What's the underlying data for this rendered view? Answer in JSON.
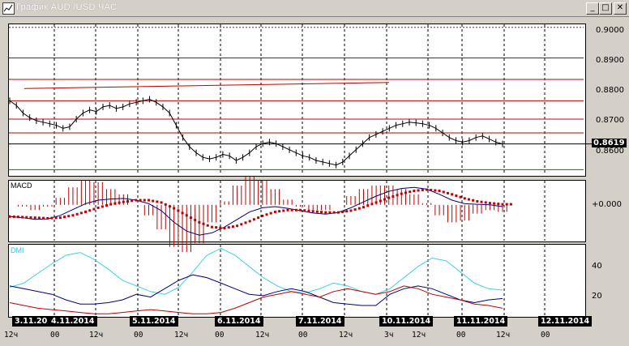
{
  "window": {
    "title": "График AUD /USD  ЧАС",
    "icon": "chart-window-icon",
    "minimize_label": "_",
    "maximize_label": "□",
    "close_label": "✕"
  },
  "price_panel": {
    "scale_labels": [
      "0.9000",
      "0.8900",
      "0.8800",
      "0.8700",
      "0.8600"
    ],
    "current_price": "0.8619",
    "resistance_levels": [
      0.9,
      0.89,
      0.883,
      0.876,
      0.87,
      0.8655
    ],
    "support_level": 0.8535,
    "trendline": [
      0.88,
      0.882
    ],
    "ylim": [
      0.852,
      0.901
    ],
    "series": [
      0.876,
      0.8745,
      0.872,
      0.8705,
      0.8695,
      0.869,
      0.8685,
      0.868,
      0.867,
      0.8675,
      0.87,
      0.872,
      0.873,
      0.8725,
      0.874,
      0.8745,
      0.8735,
      0.874,
      0.875,
      0.8755,
      0.876,
      0.8765,
      0.8755,
      0.874,
      0.872,
      0.868,
      0.864,
      0.861,
      0.859,
      0.8575,
      0.857,
      0.8575,
      0.8585,
      0.858,
      0.8565,
      0.8575,
      0.859,
      0.861,
      0.862,
      0.8625,
      0.862,
      0.861,
      0.86,
      0.859,
      0.858,
      0.8575,
      0.8565,
      0.856,
      0.8555,
      0.855,
      0.856,
      0.858,
      0.86,
      0.862,
      0.864,
      0.865,
      0.866,
      0.867,
      0.868,
      0.8685,
      0.869,
      0.8688,
      0.8685,
      0.868,
      0.867,
      0.8655,
      0.864,
      0.863,
      0.8625,
      0.863,
      0.864,
      0.8645,
      0.8635,
      0.8625,
      0.8619
    ]
  },
  "macd_panel": {
    "label": "MACD",
    "scale_label": "+0.000",
    "ylim": [
      -0.006,
      0.004
    ],
    "macd": [
      -0.002,
      -0.0022,
      -0.0025,
      -0.0024,
      -0.0018,
      -0.0008,
      0.0002,
      0.0008,
      0.001,
      0.0011,
      0.0008,
      0.0002,
      -0.001,
      -0.003,
      -0.0045,
      -0.0052,
      -0.0048,
      -0.0038,
      -0.0025,
      -0.0012,
      -0.0005,
      -0.0003,
      -0.0006,
      -0.001,
      -0.0014,
      -0.0016,
      -0.0013,
      -0.0005,
      0.0005,
      0.0015,
      0.0023,
      0.0028,
      0.003,
      0.0027,
      0.0018,
      0.0008,
      0.0002,
      0.0001,
      0.0,
      -0.0003
    ],
    "signal": [
      -0.002,
      -0.0021,
      -0.0022,
      -0.0023,
      -0.0022,
      -0.0018,
      -0.0012,
      -0.0005,
      0.0001,
      0.0005,
      0.0008,
      0.0008,
      0.0004,
      -0.0006,
      -0.0018,
      -0.003,
      -0.0038,
      -0.004,
      -0.0036,
      -0.0028,
      -0.0019,
      -0.0012,
      -0.0009,
      -0.0009,
      -0.0011,
      -0.0013,
      -0.0013,
      -0.001,
      -0.0004,
      0.0004,
      0.0012,
      0.0019,
      0.0024,
      0.0026,
      0.0024,
      0.0018,
      0.0011,
      0.0006,
      0.0003,
      0.0001
    ]
  },
  "dmi_panel": {
    "label": "DMI",
    "scale_labels": [
      "40",
      "20"
    ],
    "ylim": [
      5,
      55
    ],
    "adx": [
      25,
      28,
      35,
      42,
      48,
      50,
      45,
      38,
      30,
      26,
      22,
      20,
      25,
      36,
      48,
      53,
      48,
      40,
      32,
      26,
      22,
      21,
      24,
      28,
      26,
      22,
      20,
      24,
      32,
      40,
      46,
      44,
      36,
      28,
      24,
      23
    ],
    "plus_di": [
      26,
      24,
      22,
      20,
      16,
      13,
      13,
      14,
      16,
      20,
      18,
      24,
      30,
      34,
      32,
      28,
      24,
      20,
      19,
      22,
      24,
      22,
      18,
      14,
      13,
      12,
      12,
      20,
      24,
      26,
      24,
      20,
      16,
      14,
      16,
      17
    ],
    "minus_di": [
      14,
      12,
      10,
      9,
      8,
      7,
      6,
      6,
      7,
      8,
      9,
      8,
      7,
      6,
      6,
      7,
      10,
      14,
      18,
      20,
      22,
      20,
      18,
      22,
      24,
      22,
      20,
      22,
      26,
      24,
      20,
      18,
      16,
      13,
      12,
      10
    ]
  },
  "time_axis": {
    "date_labels": [
      "3.11.20",
      "4.11.2014",
      "5.11.2014",
      "6.11.2014",
      "7.11.2014",
      "10.11.2014",
      "11.11.2014",
      "12.11.2014"
    ],
    "tick_labels": [
      "12ч",
      "00",
      "12ч",
      "00",
      "12ч",
      "00",
      "12ч",
      "00",
      "12ч",
      "3ч",
      "12ч",
      "00",
      "12ч",
      "00"
    ]
  },
  "colors": {
    "price_line": "#000000",
    "resistance": "#c00000",
    "support": "#008000",
    "macd_line": "#000080",
    "macd_signal": "#c00000",
    "adx": "#40d0e0",
    "plus_di": "#000080",
    "minus_di": "#c00000"
  }
}
